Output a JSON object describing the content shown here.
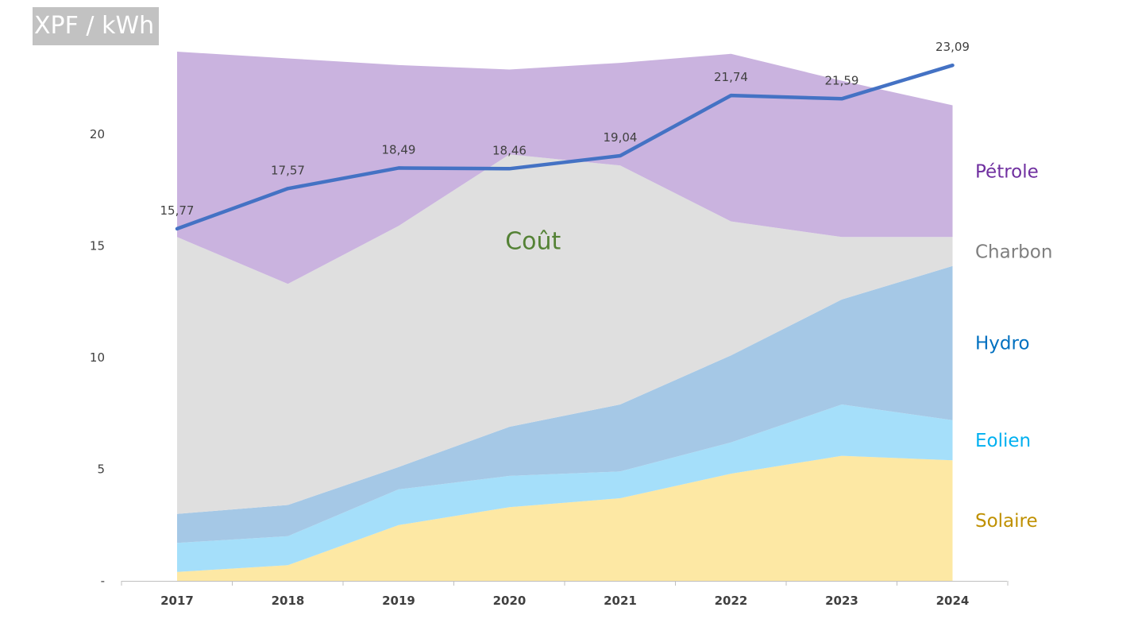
{
  "chart_data": {
    "type": "area",
    "unit_label": "XPF / kWh",
    "categories": [
      "2017",
      "2018",
      "2019",
      "2020",
      "2021",
      "2022",
      "2023",
      "2024"
    ],
    "ylim": [
      0,
      23.5
    ],
    "y_ticks": [
      {
        "value": 0,
        "label": "-"
      },
      {
        "value": 5,
        "label": "5"
      },
      {
        "value": 10,
        "label": "10"
      },
      {
        "value": 15,
        "label": "15"
      },
      {
        "value": 20,
        "label": "20"
      }
    ],
    "grid": false,
    "stacked_series": [
      {
        "name": "Solaire",
        "color": "#fde8a4",
        "label_color": "#bf9000",
        "values": [
          0.4,
          0.7,
          2.5,
          3.3,
          3.7,
          4.8,
          5.6,
          5.4
        ]
      },
      {
        "name": "Eolien",
        "color": "#a5dffa",
        "label_color": "#00b0f0",
        "values": [
          1.3,
          1.3,
          1.6,
          1.4,
          1.2,
          1.4,
          2.3,
          1.8
        ]
      },
      {
        "name": "Hydro",
        "color": "#a5c8e6",
        "label_color": "#0070c0",
        "values": [
          1.3,
          1.4,
          1.0,
          2.2,
          3.0,
          3.9,
          4.7,
          6.9
        ]
      },
      {
        "name": "Charbon",
        "color": "#dfdfdf",
        "label_color": "#7f7f7f",
        "values": [
          12.4,
          9.9,
          10.8,
          12.2,
          10.7,
          6.0,
          2.8,
          1.3
        ]
      },
      {
        "name": "Pétrole",
        "color": "#cab3df",
        "label_color": "#7030a0",
        "values": [
          8.3,
          10.1,
          7.2,
          3.8,
          4.6,
          7.5,
          7.0,
          5.9
        ]
      }
    ],
    "line_series": {
      "name": "Coût",
      "color": "#4472c4",
      "label_color": "#548235",
      "values": [
        15.77,
        17.57,
        18.49,
        18.46,
        19.04,
        21.74,
        21.59,
        23.09
      ],
      "data_labels": [
        "15,77",
        "17,57",
        "18,49",
        "18,46",
        "19,04",
        "21,74",
        "21,59",
        "23,09"
      ]
    }
  }
}
